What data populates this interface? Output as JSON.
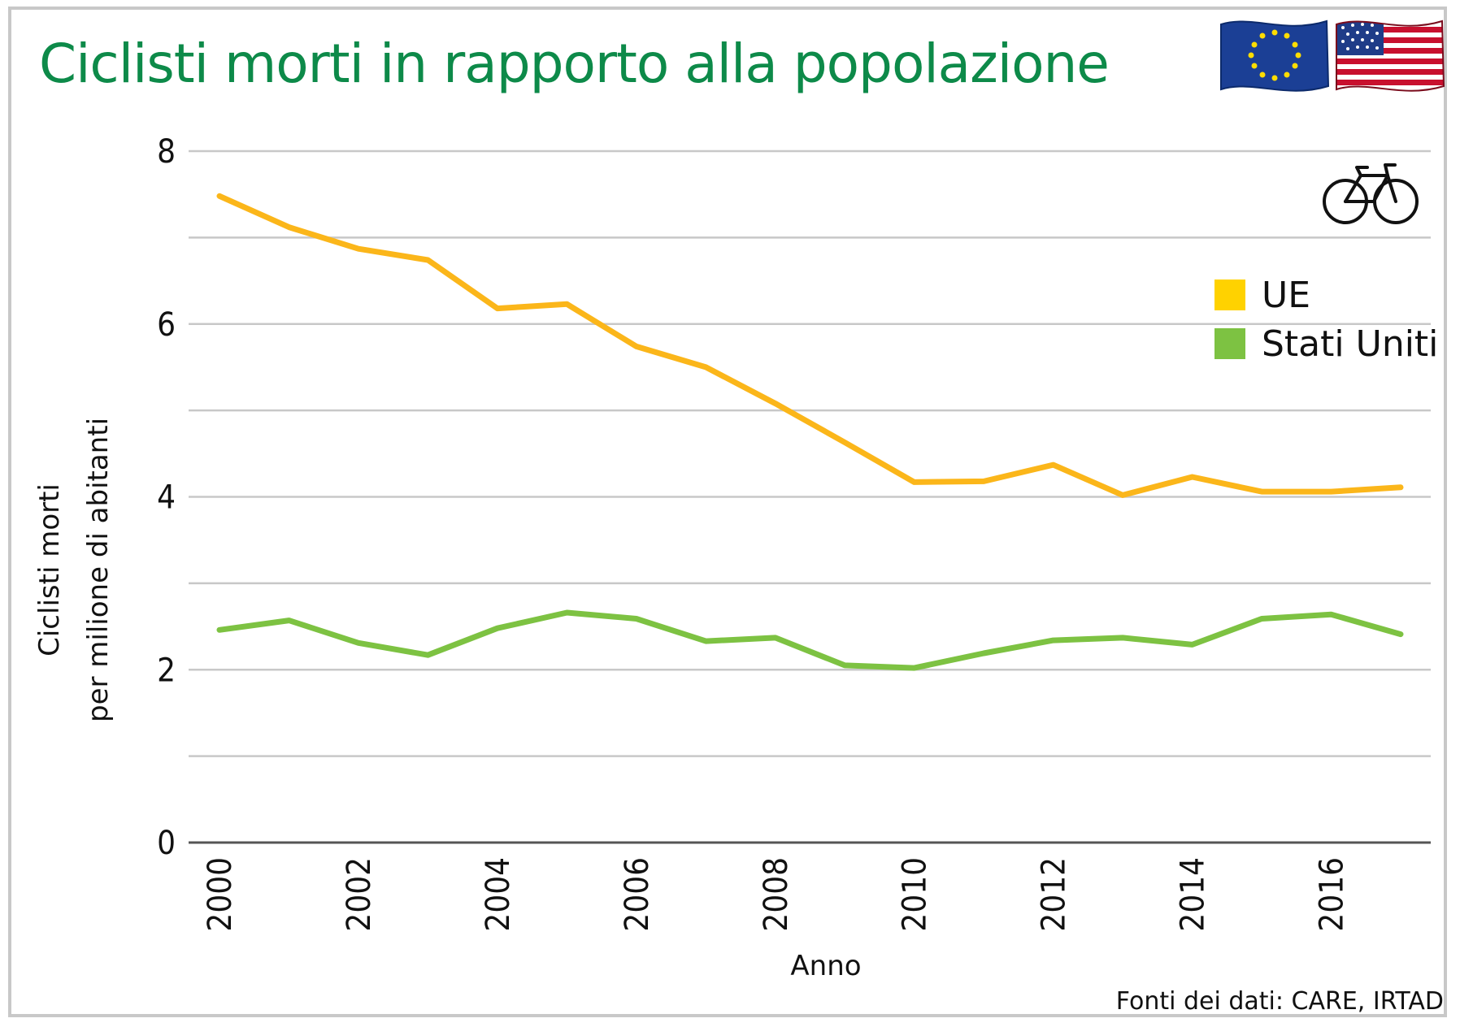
{
  "title": "Ciclisti morti in rapporto alla popolazione",
  "source": "Fonti dei dati: CARE, IRTAD",
  "icons": [
    "eu-flag-icon",
    "us-flag-icon",
    "bicycle-icon"
  ],
  "colors": {
    "title": "#0d8a49",
    "ue": "#fbb61a",
    "usa": "#7dc242",
    "grid": "#c8c8c8"
  },
  "chart_data": {
    "type": "line",
    "title": "Ciclisti morti in rapporto alla popolazione",
    "xlabel": "Anno",
    "ylabel": [
      "Ciclisti morti",
      "per milione di abitanti"
    ],
    "x": [
      2000,
      2001,
      2002,
      2003,
      2004,
      2005,
      2006,
      2007,
      2008,
      2009,
      2010,
      2011,
      2012,
      2013,
      2014,
      2015,
      2016,
      2017
    ],
    "xticks": [
      "2000",
      "2002",
      "2004",
      "2006",
      "2008",
      "2010",
      "2012",
      "2014",
      "2016"
    ],
    "yticks": [
      "0",
      "2",
      "4",
      "6",
      "8"
    ],
    "ylim": [
      0,
      8
    ],
    "grid": true,
    "legend_position": "top-right",
    "series": [
      {
        "name": "UE",
        "color": "#fbb61a",
        "values": [
          7.48,
          7.12,
          6.87,
          6.74,
          6.18,
          6.23,
          5.74,
          5.5,
          5.08,
          4.63,
          4.17,
          4.18,
          4.37,
          4.02,
          4.23,
          4.06,
          4.06,
          4.11
        ]
      },
      {
        "name": "Stati Uniti",
        "color": "#7dc242",
        "values": [
          2.46,
          2.57,
          2.31,
          2.17,
          2.48,
          2.66,
          2.59,
          2.33,
          2.37,
          2.05,
          2.02,
          2.19,
          2.34,
          2.37,
          2.29,
          2.59,
          2.64,
          2.41
        ]
      }
    ]
  }
}
